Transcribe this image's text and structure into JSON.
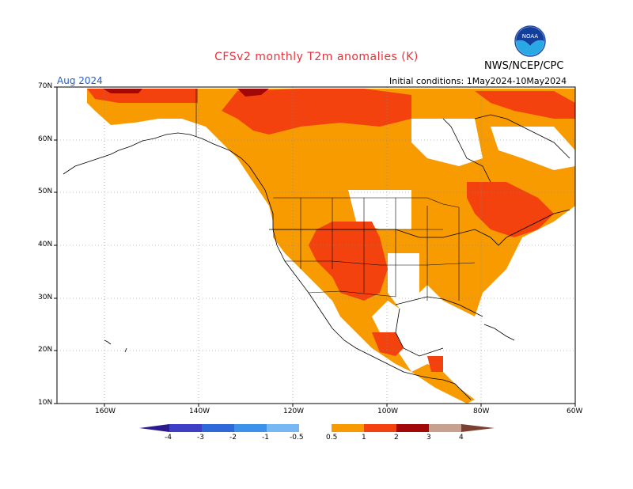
{
  "title": "CFSv2 monthly T2m anomalies (K)",
  "agency": "NWS/NCEP/CPC",
  "month": "Aug 2024",
  "initial_conditions": "Initial conditions:  1May2024-10May2024",
  "logo_text": "NOAA",
  "map": {
    "lat_labels": [
      "70N",
      "60N",
      "50N",
      "40N",
      "30N",
      "20N",
      "10N"
    ],
    "lon_labels": [
      "160W",
      "140W",
      "120W",
      "100W",
      "80W",
      "60W"
    ],
    "region": "North America"
  },
  "colorbar": {
    "labels": [
      "-4",
      "-3",
      "-2",
      "-1",
      "-0.5",
      "0.5",
      "1",
      "2",
      "3",
      "4"
    ],
    "colors": [
      "#2b1b8f",
      "#3f3fc6",
      "#2f68d8",
      "#3b92e8",
      "#78b8f2",
      "#ffffff",
      "#f79b00",
      "#f4420f",
      "#a30808",
      "#c8a090",
      "#7a4030"
    ],
    "units": "K"
  }
}
